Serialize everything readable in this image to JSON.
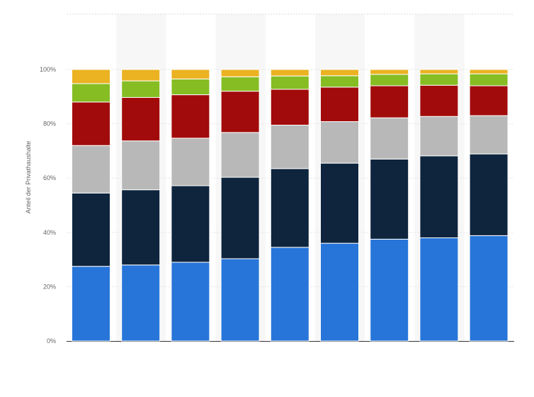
{
  "chart_data": {
    "type": "bar",
    "stacked": true,
    "title": "",
    "xlabel": "",
    "ylabel": "Anteil der Privathaushalte",
    "ylim": [
      0,
      100
    ],
    "y_ticks": [
      "0%",
      "20%",
      "40%",
      "60%",
      "80%",
      "100%"
    ],
    "grid": true,
    "categories": [
      "1",
      "2",
      "3",
      "4",
      "5",
      "6",
      "7",
      "8",
      "9"
    ],
    "category_labels_visible": false,
    "series": [
      {
        "color": "#2775d9",
        "values": [
          27.5,
          28.0,
          29.0,
          30.3,
          34.5,
          36.0,
          37.5,
          38.0,
          38.8
        ]
      },
      {
        "color": "#0f253e",
        "values": [
          27.0,
          27.7,
          28.2,
          30.0,
          29.0,
          29.5,
          29.5,
          30.2,
          30.1
        ]
      },
      {
        "color": "#b8b8b8",
        "values": [
          17.5,
          18.0,
          17.5,
          16.5,
          16.0,
          15.3,
          15.2,
          14.5,
          14.1
        ]
      },
      {
        "color": "#a20b0b",
        "values": [
          16.0,
          16.0,
          16.0,
          15.2,
          13.2,
          12.7,
          11.8,
          11.5,
          11.0
        ]
      },
      {
        "color": "#86bd23",
        "values": [
          6.8,
          6.1,
          5.8,
          5.3,
          4.9,
          4.2,
          4.2,
          4.2,
          4.4
        ]
      },
      {
        "color": "#ebb222",
        "values": [
          5.2,
          4.2,
          3.5,
          2.7,
          2.4,
          2.3,
          1.8,
          1.6,
          1.6
        ]
      }
    ]
  }
}
